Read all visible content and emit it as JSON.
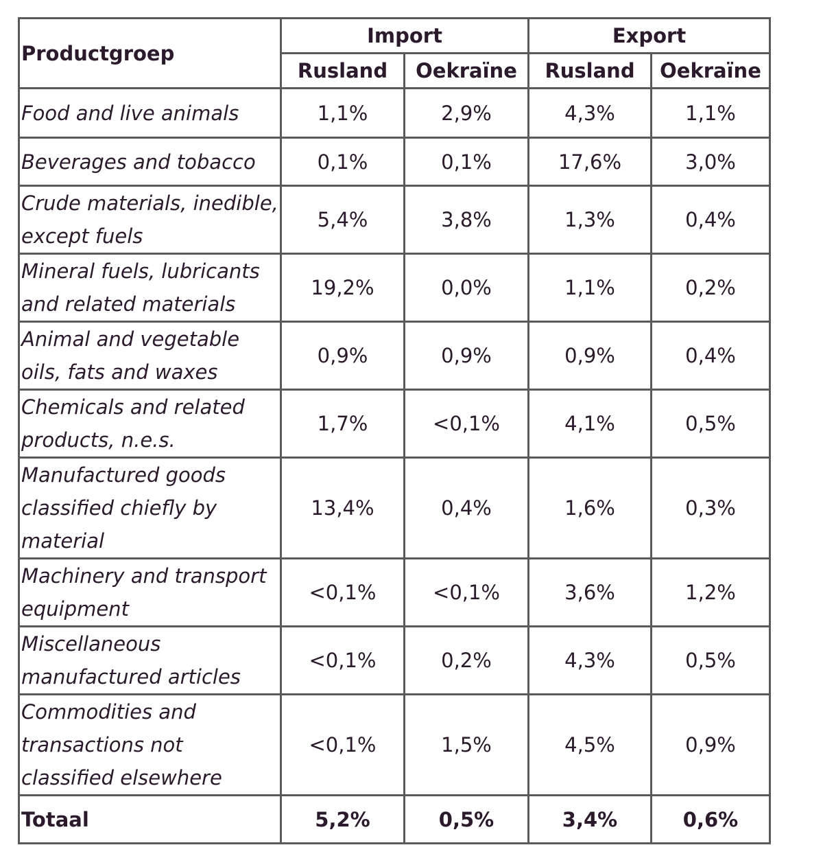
{
  "table": {
    "corner_header": "Productgroep",
    "group_headers": [
      "Import",
      "Export"
    ],
    "sub_headers": [
      "Rusland",
      "Oekraïne",
      "Rusland",
      "Oekraïne"
    ],
    "rows": [
      {
        "label": "Food and live animals",
        "values": [
          "1,1%",
          "2,9%",
          "4,3%",
          "1,1%"
        ]
      },
      {
        "label": "Beverages and tobacco",
        "values": [
          "0,1%",
          "0,1%",
          "17,6%",
          "3,0%"
        ]
      },
      {
        "label": "Crude materials, inedible, except fuels",
        "values": [
          "5,4%",
          "3,8%",
          "1,3%",
          "0,4%"
        ]
      },
      {
        "label": "Mineral fuels, lubricants and related materials",
        "values": [
          "19,2%",
          "0,0%",
          "1,1%",
          "0,2%"
        ]
      },
      {
        "label": "Animal and vegetable oils, fats and waxes",
        "values": [
          "0,9%",
          "0,9%",
          "0,9%",
          "0,4%"
        ]
      },
      {
        "label": "Chemicals and related products, n.e.s.",
        "values": [
          "1,7%",
          "<0,1%",
          "4,1%",
          "0,5%"
        ]
      },
      {
        "label": "Manufactured goods classified chiefly by material",
        "values": [
          "13,4%",
          "0,4%",
          "1,6%",
          "0,3%"
        ]
      },
      {
        "label": "Machinery and transport equipment",
        "values": [
          "<0,1%",
          "<0,1%",
          "3,6%",
          "1,2%"
        ]
      },
      {
        "label": "Miscellaneous manufactured articles",
        "values": [
          "<0,1%",
          "0,2%",
          "4,3%",
          "0,5%"
        ]
      },
      {
        "label": "Commodities and transactions not classified elsewhere",
        "values": [
          "<0,1%",
          "1,5%",
          "4,5%",
          "0,9%"
        ]
      }
    ],
    "total": {
      "label": "Totaal",
      "values": [
        "5,2%",
        "0,5%",
        "3,4%",
        "0,6%"
      ]
    }
  }
}
